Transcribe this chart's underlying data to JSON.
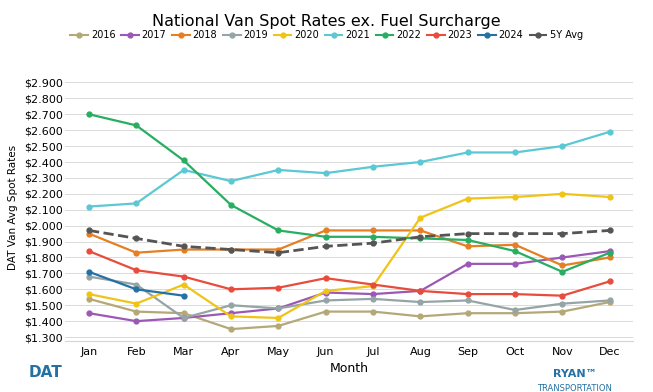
{
  "title": "National Van Spot Rates ex. Fuel Surcharge",
  "xlabel": "Month",
  "ylabel": "DAT Van Avg Spot Rates",
  "months": [
    "Jan",
    "Feb",
    "Mar",
    "Apr",
    "May",
    "Jun",
    "Jul",
    "Aug",
    "Sep",
    "Oct",
    "Nov",
    "Dec"
  ],
  "ylim": [
    1.275,
    2.95
  ],
  "yticks": [
    1.3,
    1.4,
    1.5,
    1.6,
    1.7,
    1.8,
    1.9,
    2.0,
    2.1,
    2.2,
    2.3,
    2.4,
    2.5,
    2.6,
    2.7,
    2.8,
    2.9
  ],
  "series": {
    "2016": {
      "color": "#b5a878",
      "values": [
        1.54,
        1.46,
        1.45,
        1.35,
        1.37,
        1.46,
        1.46,
        1.43,
        1.45,
        1.45,
        1.46,
        1.52
      ]
    },
    "2017": {
      "color": "#9b59b6",
      "values": [
        1.45,
        1.4,
        1.42,
        1.45,
        1.48,
        1.58,
        1.57,
        1.59,
        1.76,
        1.76,
        1.8,
        1.84
      ]
    },
    "2018": {
      "color": "#e67e22",
      "values": [
        1.95,
        1.83,
        1.85,
        1.85,
        1.85,
        1.97,
        1.97,
        1.97,
        1.87,
        1.88,
        1.75,
        1.8
      ]
    },
    "2019": {
      "color": "#95a5a6",
      "values": [
        1.68,
        1.63,
        1.42,
        1.5,
        1.48,
        1.53,
        1.54,
        1.52,
        1.53,
        1.47,
        1.51,
        1.53
      ]
    },
    "2020": {
      "color": "#f0c417",
      "values": [
        1.57,
        1.51,
        1.63,
        1.43,
        1.42,
        1.59,
        1.62,
        2.05,
        2.17,
        2.18,
        2.2,
        2.18
      ]
    },
    "2021": {
      "color": "#5bc8d4",
      "values": [
        2.12,
        2.14,
        2.35,
        2.28,
        2.35,
        2.33,
        2.37,
        2.4,
        2.46,
        2.46,
        2.5,
        2.59
      ]
    },
    "2022": {
      "color": "#27ae60",
      "values": [
        2.7,
        2.63,
        2.41,
        2.13,
        1.97,
        1.93,
        1.93,
        1.92,
        1.91,
        1.84,
        1.71,
        1.83
      ]
    },
    "2023": {
      "color": "#e74c3c",
      "values": [
        1.84,
        1.72,
        1.68,
        1.6,
        1.61,
        1.67,
        1.63,
        1.59,
        1.57,
        1.57,
        1.56,
        1.65
      ]
    },
    "2024": {
      "color": "#2471a3",
      "values": [
        1.71,
        1.6,
        1.56,
        null,
        null,
        null,
        null,
        null,
        null,
        null,
        null,
        null
      ]
    },
    "5Y Avg": {
      "color": "#555555",
      "values": [
        1.97,
        1.92,
        1.87,
        1.85,
        1.83,
        1.87,
        1.89,
        1.93,
        1.95,
        1.95,
        1.95,
        1.97
      ],
      "dashed": true
    }
  },
  "background_color": "#ffffff",
  "grid_color": "#d5d5d5",
  "dat_logo_color": "#2471a3",
  "ryan_logo_color": "#2471a3"
}
